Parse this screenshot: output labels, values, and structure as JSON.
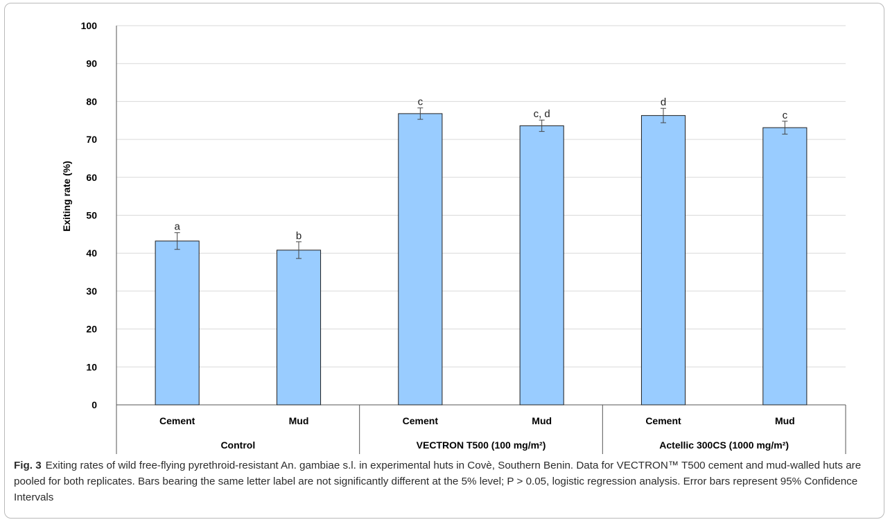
{
  "chart_data": {
    "type": "bar",
    "ylabel": "Exiting rate (%)",
    "ylim": [
      0,
      100
    ],
    "yticks": [
      0,
      10,
      20,
      30,
      40,
      50,
      60,
      70,
      80,
      90,
      100
    ],
    "grid": true,
    "bar_color": "#99ccff",
    "bar_edge_color": "#1f1f1f",
    "groups": [
      {
        "label": "Control",
        "categories": [
          "Cement",
          "Mud"
        ]
      },
      {
        "label": "VECTRON T500 (100 mg/m²)",
        "categories": [
          "Cement",
          "Mud"
        ]
      },
      {
        "label": "Actellic 300CS (1000 mg/m²)",
        "categories": [
          "Cement",
          "Mud"
        ]
      }
    ],
    "bars": [
      {
        "group": "Control",
        "category": "Cement",
        "value": 43.2,
        "ci": [
          41.0,
          45.4
        ],
        "letter": "a"
      },
      {
        "group": "Control",
        "category": "Mud",
        "value": 40.8,
        "ci": [
          38.6,
          43.0
        ],
        "letter": "b"
      },
      {
        "group": "VECTRON T500 (100 mg/m²)",
        "category": "Cement",
        "value": 76.8,
        "ci": [
          75.3,
          78.3
        ],
        "letter": "c"
      },
      {
        "group": "VECTRON T500 (100 mg/m²)",
        "category": "Mud",
        "value": 73.6,
        "ci": [
          72.1,
          75.1
        ],
        "letter": "c, d"
      },
      {
        "group": "Actellic 300CS (1000 mg/m²)",
        "category": "Cement",
        "value": 76.3,
        "ci": [
          74.4,
          78.2
        ],
        "letter": "d"
      },
      {
        "group": "Actellic 300CS (1000 mg/m²)",
        "category": "Mud",
        "value": 73.1,
        "ci": [
          71.4,
          74.8
        ],
        "letter": "c"
      }
    ]
  },
  "caption": {
    "fig_label": "Fig. 3",
    "text": "Exiting rates of wild free-flying pyrethroid-resistant An. gambiae s.l. in experimental huts in Covè, Southern Benin. Data for VECTRON™ T500 cement and mud-walled huts are pooled for both replicates. Bars bearing the same letter label are not significantly different at the 5% level; P > 0.05, logistic regression analysis. Error bars represent 95% Confidence Intervals"
  }
}
